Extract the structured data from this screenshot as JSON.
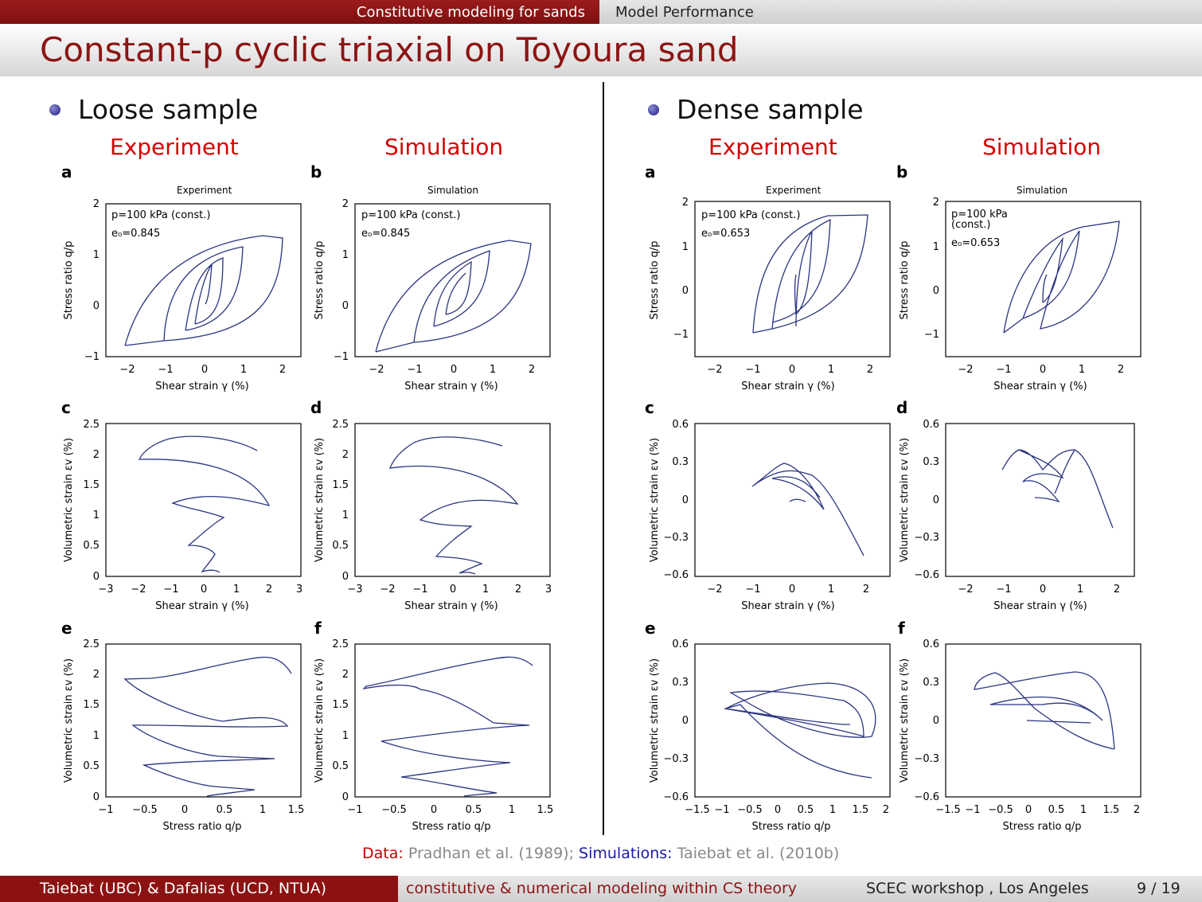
{
  "nav": {
    "section_left": "Constitutive modeling for sands",
    "section_right": "Model Performance"
  },
  "slide": {
    "title": "Constant-p cyclic triaxial on Toyoura sand"
  },
  "panels": {
    "loose": {
      "heading": "Loose sample",
      "col_experiment": "Experiment",
      "col_simulation": "Simulation"
    },
    "dense": {
      "heading": "Dense sample",
      "col_experiment": "Experiment",
      "col_simulation": "Simulation"
    }
  },
  "plot_labels": [
    "a",
    "b",
    "c",
    "d",
    "e",
    "f"
  ],
  "plot_titles": {
    "experiment": "Experiment",
    "simulation": "Simulation"
  },
  "axis_labels": {
    "shear_strain": "Shear strain  γ (%)",
    "stress_ratio_x": "Stress ratio  q/p",
    "stress_ratio_y": "Stress ratio  q/p",
    "volumetric": "Volumetric strain  εv (%)"
  },
  "annotations": {
    "loose_exp": [
      "p=100 kPa (const.)",
      "e₀=0.845"
    ],
    "loose_sim": [
      "p=100 kPa (const.)",
      "e₀=0.845"
    ],
    "dense_exp": [
      "p=100 kPa (const.)",
      "e₀=0.653"
    ],
    "dense_sim": [
      "p=100 kPa",
      "(const.)",
      "e₀=0.653"
    ]
  },
  "ticks": {
    "loose_a_x": [
      "−2",
      "−1",
      "0",
      "1",
      "2"
    ],
    "loose_a_y": [
      "2",
      "1",
      "0",
      "−1"
    ],
    "loose_c_x": [
      "−3",
      "−2",
      "−1",
      "0",
      "1",
      "2",
      "3"
    ],
    "loose_c_y": [
      "2.5",
      "2",
      "1.5",
      "1",
      "0.5",
      "0"
    ],
    "loose_e_x": [
      "−1",
      "−0.5",
      "0",
      "0.5",
      "1",
      "1.5"
    ],
    "dense_a_x": [
      "−2",
      "−1",
      "0",
      "1",
      "2"
    ],
    "dense_a_y": [
      "1",
      "0",
      "−1"
    ],
    "dense_a_y_top": "2",
    "dense_c_x": [
      "−2",
      "−1",
      "0",
      "1",
      "2"
    ],
    "dense_c_y": [
      "0.6",
      "0.3",
      "0",
      "−0.3",
      "−0.6"
    ],
    "dense_e_x": [
      "−1.5",
      "−1",
      "−0.5",
      "0",
      "0.5",
      "1",
      "1.5",
      "2"
    ]
  },
  "credit": {
    "data_label": "Data:",
    "data_text": " Pradhan et al. (1989); ",
    "sim_label": "Simulations:",
    "sim_text": " Taiebat et al. (2010b)"
  },
  "footer": {
    "authors": "Taiebat (UBC) & Dafalias (UCD, NTUA)",
    "topic": "constitutive & numerical modeling within CS theory",
    "venue": "SCEC workshop , Los Angeles",
    "page": "9 / 19"
  },
  "colors": {
    "accent": "#8c1414",
    "curve": "#2b3580",
    "heading_red": "#d40000",
    "sim_blue": "#1a1aa6"
  }
}
